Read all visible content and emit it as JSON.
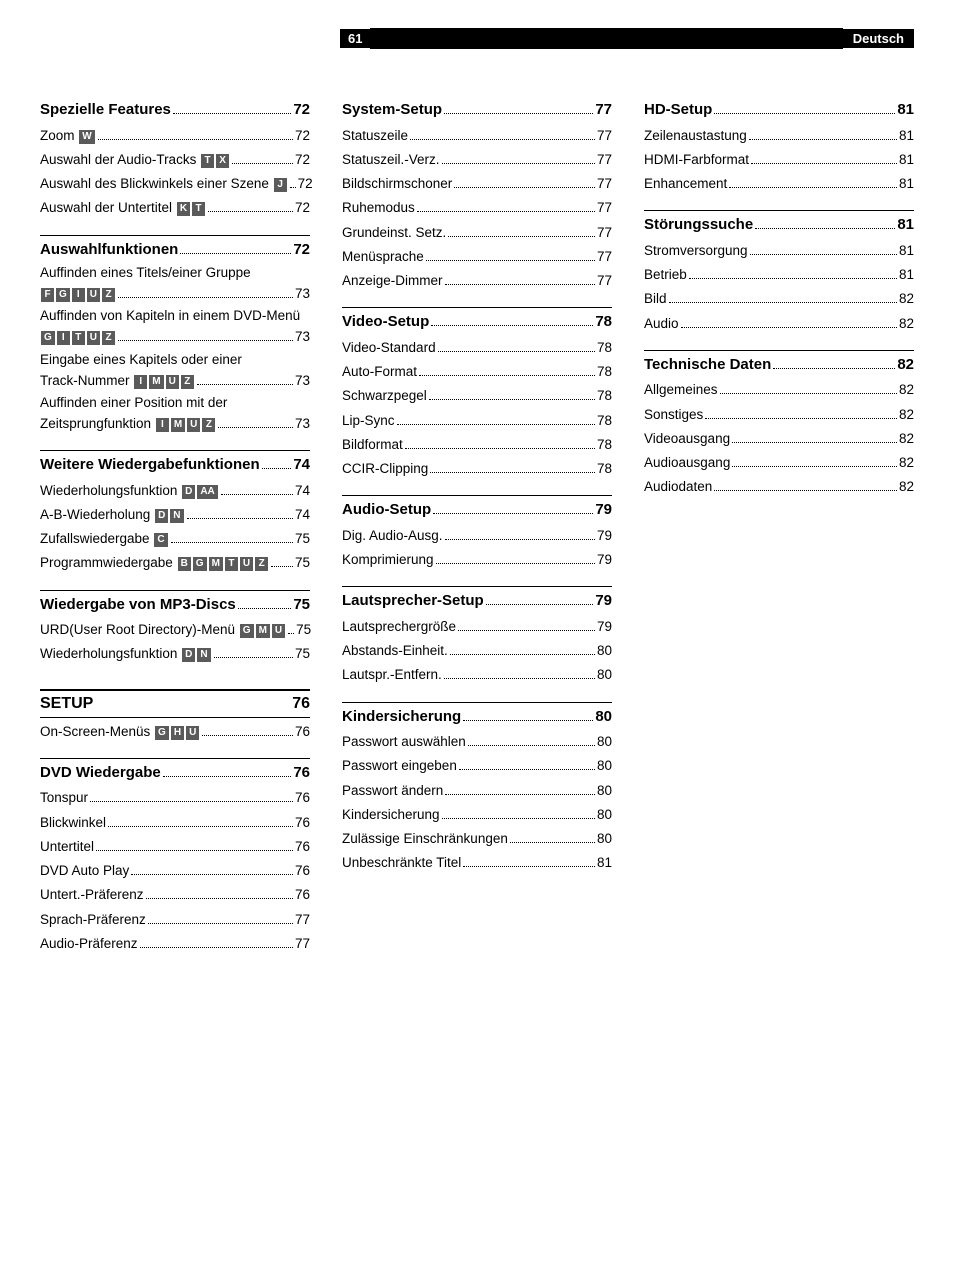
{
  "header": {
    "page": "61",
    "lang": "Deutsch"
  },
  "col1": [
    {
      "t": "head",
      "label": "Spezielle Features",
      "pg": "72"
    },
    {
      "t": "row",
      "parts": [
        {
          "x": "Zoom "
        },
        {
          "k": "W"
        }
      ],
      "pg": "72"
    },
    {
      "t": "row",
      "parts": [
        {
          "x": "Auswahl der Audio-Tracks "
        },
        {
          "k": "T"
        },
        {
          "k": "X"
        }
      ],
      "pg": "72"
    },
    {
      "t": "row",
      "parts": [
        {
          "x": "Auswahl des Blickwinkels einer Szene "
        },
        {
          "k": "J"
        }
      ],
      "pg": "72"
    },
    {
      "t": "row",
      "parts": [
        {
          "x": "Auswahl der Untertitel "
        },
        {
          "k": "K"
        },
        {
          "k": "T"
        }
      ],
      "pg": "72"
    },
    {
      "t": "head",
      "rule": true,
      "label": "Auswahlfunktionen",
      "pg": "72"
    },
    {
      "t": "ml",
      "top": "Auffinden eines Titels/einer Gruppe",
      "keys": [
        "F",
        "G",
        "I",
        "U",
        "Z"
      ],
      "pg": "73"
    },
    {
      "t": "ml",
      "top": "Auffinden von Kapiteln in einem DVD-Menü",
      "keys": [
        "G",
        "I",
        "T",
        "U",
        "Z"
      ],
      "pg": "73"
    },
    {
      "t": "ml",
      "top": "Eingabe eines Kapitels oder einer",
      "pre": "Track-Nummer ",
      "keys": [
        "I",
        "M",
        "U",
        "Z"
      ],
      "pg": "73"
    },
    {
      "t": "ml",
      "top": "Auffinden einer Position mit der",
      "pre": "Zeitsprungfunktion ",
      "keys": [
        "I",
        "M",
        "U",
        "Z"
      ],
      "pg": "73"
    },
    {
      "t": "head",
      "rule": true,
      "label": "Weitere Wiedergabefunktionen",
      "pg": "74"
    },
    {
      "t": "row",
      "parts": [
        {
          "x": "Wiederholungsfunktion "
        },
        {
          "k": "D"
        },
        {
          "k": "AA"
        }
      ],
      "pg": "74"
    },
    {
      "t": "row",
      "parts": [
        {
          "x": "A-B-Wiederholung "
        },
        {
          "k": "D"
        },
        {
          "k": "N"
        }
      ],
      "pg": "74"
    },
    {
      "t": "row",
      "parts": [
        {
          "x": "Zufallswiedergabe "
        },
        {
          "k": "C"
        }
      ],
      "pg": "75"
    },
    {
      "t": "row",
      "parts": [
        {
          "x": "Programmwiedergabe "
        },
        {
          "k": "B"
        },
        {
          "k": "G"
        },
        {
          "k": "M"
        },
        {
          "k": "T"
        },
        {
          "k": "U"
        },
        {
          "k": "Z"
        }
      ],
      "pg": "75"
    },
    {
      "t": "head",
      "rule": true,
      "label": "Wiedergabe von MP3-Discs",
      "pg": "75"
    },
    {
      "t": "row",
      "parts": [
        {
          "x": "URD(User Root Directory)-Menü "
        },
        {
          "k": "G"
        },
        {
          "k": "M"
        },
        {
          "k": "U"
        }
      ],
      "pg": "75"
    },
    {
      "t": "row",
      "parts": [
        {
          "x": "Wiederholungsfunktion "
        },
        {
          "k": "D"
        },
        {
          "k": "N"
        }
      ],
      "pg": "75"
    },
    {
      "t": "setup",
      "label": "SETUP",
      "pg": "76"
    },
    {
      "t": "row",
      "parts": [
        {
          "x": "On-Screen-Menüs "
        },
        {
          "k": "G"
        },
        {
          "k": "H"
        },
        {
          "k": "U"
        }
      ],
      "pg": "76"
    },
    {
      "t": "head",
      "rule": true,
      "label": "DVD Wiedergabe",
      "pg": "76"
    },
    {
      "t": "row",
      "parts": [
        {
          "x": "Tonspur"
        }
      ],
      "pg": "76"
    },
    {
      "t": "row",
      "parts": [
        {
          "x": "Blickwinkel"
        }
      ],
      "pg": "76"
    },
    {
      "t": "row",
      "parts": [
        {
          "x": "Untertitel"
        }
      ],
      "pg": "76"
    },
    {
      "t": "row",
      "parts": [
        {
          "x": "DVD Auto Play"
        }
      ],
      "pg": "76"
    },
    {
      "t": "row",
      "parts": [
        {
          "x": "Untert.-Präferenz"
        }
      ],
      "pg": "76"
    },
    {
      "t": "row",
      "parts": [
        {
          "x": "Sprach-Präferenz"
        }
      ],
      "pg": "77"
    },
    {
      "t": "row",
      "parts": [
        {
          "x": "Audio-Präferenz"
        }
      ],
      "pg": "77"
    }
  ],
  "col2": [
    {
      "t": "head",
      "label": "System-Setup",
      "pg": "77"
    },
    {
      "t": "row",
      "parts": [
        {
          "x": "Statuszeile"
        }
      ],
      "pg": "77"
    },
    {
      "t": "row",
      "parts": [
        {
          "x": "Statuszeil.-Verz."
        }
      ],
      "pg": "77"
    },
    {
      "t": "row",
      "parts": [
        {
          "x": "Bildschirmschoner"
        }
      ],
      "pg": "77"
    },
    {
      "t": "row",
      "parts": [
        {
          "x": "Ruhemodus"
        }
      ],
      "pg": "77"
    },
    {
      "t": "row",
      "parts": [
        {
          "x": "Grundeinst. Setz."
        }
      ],
      "pg": "77"
    },
    {
      "t": "row",
      "parts": [
        {
          "x": "Menüsprache"
        }
      ],
      "pg": "77"
    },
    {
      "t": "row",
      "parts": [
        {
          "x": "Anzeige-Dimmer"
        }
      ],
      "pg": "77"
    },
    {
      "t": "head",
      "rule": true,
      "label": "Video-Setup",
      "pg": "78"
    },
    {
      "t": "row",
      "parts": [
        {
          "x": "Video-Standard"
        }
      ],
      "pg": "78"
    },
    {
      "t": "row",
      "parts": [
        {
          "x": "Auto-Format"
        }
      ],
      "pg": "78"
    },
    {
      "t": "row",
      "parts": [
        {
          "x": "Schwarzpegel"
        }
      ],
      "pg": "78"
    },
    {
      "t": "row",
      "parts": [
        {
          "x": "Lip-Sync"
        }
      ],
      "pg": "78"
    },
    {
      "t": "row",
      "parts": [
        {
          "x": "Bildformat"
        }
      ],
      "pg": "78"
    },
    {
      "t": "row",
      "parts": [
        {
          "x": "CCIR-Clipping"
        }
      ],
      "pg": "78"
    },
    {
      "t": "head",
      "rule": true,
      "label": "Audio-Setup",
      "pg": "79"
    },
    {
      "t": "row",
      "parts": [
        {
          "x": "Dig. Audio-Ausg."
        }
      ],
      "pg": "79"
    },
    {
      "t": "row",
      "parts": [
        {
          "x": "Komprimierung"
        }
      ],
      "pg": "79"
    },
    {
      "t": "head",
      "rule": true,
      "label": "Lautsprecher-Setup",
      "pg": "79"
    },
    {
      "t": "row",
      "parts": [
        {
          "x": "Lautsprechergröße"
        }
      ],
      "pg": "79"
    },
    {
      "t": "row",
      "parts": [
        {
          "x": "Abstands-Einheit."
        }
      ],
      "pg": "80"
    },
    {
      "t": "row",
      "parts": [
        {
          "x": "Lautspr.-Entfern."
        }
      ],
      "pg": "80"
    },
    {
      "t": "head",
      "rule": true,
      "label": "Kindersicherung",
      "pg": "80"
    },
    {
      "t": "row",
      "parts": [
        {
          "x": "Passwort auswählen"
        }
      ],
      "pg": "80"
    },
    {
      "t": "row",
      "parts": [
        {
          "x": "Passwort eingeben"
        }
      ],
      "pg": "80"
    },
    {
      "t": "row",
      "parts": [
        {
          "x": "Passwort ändern"
        }
      ],
      "pg": "80"
    },
    {
      "t": "row",
      "parts": [
        {
          "x": "Kindersicherung"
        }
      ],
      "pg": "80"
    },
    {
      "t": "row",
      "parts": [
        {
          "x": "Zulässige Einschränkungen"
        }
      ],
      "pg": "80"
    },
    {
      "t": "row",
      "parts": [
        {
          "x": "Unbeschränkte Titel"
        }
      ],
      "pg": "81"
    }
  ],
  "col3": [
    {
      "t": "head",
      "label": "HD-Setup",
      "pg": "81"
    },
    {
      "t": "row",
      "parts": [
        {
          "x": "Zeilenaustastung"
        }
      ],
      "pg": "81"
    },
    {
      "t": "row",
      "parts": [
        {
          "x": "HDMI-Farbformat"
        }
      ],
      "pg": "81"
    },
    {
      "t": "row",
      "parts": [
        {
          "x": "Enhancement"
        }
      ],
      "pg": "81"
    },
    {
      "t": "head",
      "rule": true,
      "label": "Störungssuche",
      "pg": "81"
    },
    {
      "t": "row",
      "parts": [
        {
          "x": "Stromversorgung"
        }
      ],
      "pg": "81"
    },
    {
      "t": "row",
      "parts": [
        {
          "x": "Betrieb"
        }
      ],
      "pg": "81"
    },
    {
      "t": "row",
      "parts": [
        {
          "x": "Bild"
        }
      ],
      "pg": "82"
    },
    {
      "t": "row",
      "parts": [
        {
          "x": "Audio"
        }
      ],
      "pg": "82"
    },
    {
      "t": "head",
      "rule": true,
      "label": "Technische Daten",
      "pg": "82"
    },
    {
      "t": "row",
      "parts": [
        {
          "x": "Allgemeines"
        }
      ],
      "pg": "82"
    },
    {
      "t": "row",
      "parts": [
        {
          "x": "Sonstiges"
        }
      ],
      "pg": "82"
    },
    {
      "t": "row",
      "parts": [
        {
          "x": "Videoausgang"
        }
      ],
      "pg": "82"
    },
    {
      "t": "row",
      "parts": [
        {
          "x": "Audioausgang"
        }
      ],
      "pg": "82"
    },
    {
      "t": "row",
      "parts": [
        {
          "x": "Audiodaten"
        }
      ],
      "pg": "82"
    }
  ]
}
